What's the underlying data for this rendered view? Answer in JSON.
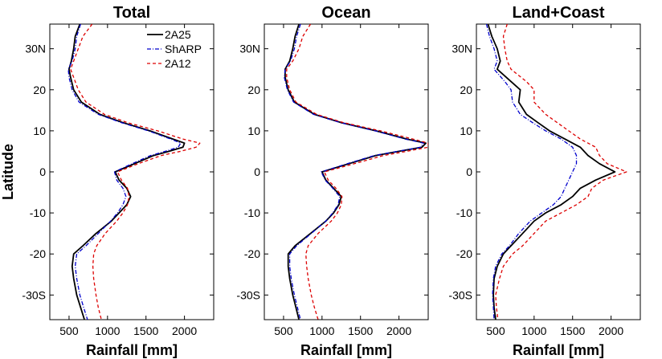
{
  "chart_data": [
    {
      "type": "line",
      "title": "Total",
      "xlabel": "Rainfall [mm]",
      "ylabel": "Latitude",
      "xlim": [
        250,
        2380
      ],
      "ylim": [
        -36,
        36
      ],
      "xticks": [
        500,
        1000,
        1500,
        2000
      ],
      "yticks": [
        {
          "value": 30,
          "label": "30N"
        },
        {
          "value": 20,
          "label": "20"
        },
        {
          "value": 10,
          "label": "10"
        },
        {
          "value": 0,
          "label": "0"
        },
        {
          "value": -10,
          "label": "-10"
        },
        {
          "value": -20,
          "label": "-20"
        },
        {
          "value": -30,
          "label": "-30S"
        }
      ],
      "legend": "top-right",
      "y": [
        36,
        33,
        30,
        27,
        25,
        23,
        20,
        17,
        14,
        12,
        10,
        8,
        7,
        6,
        5,
        4,
        2,
        0,
        -2,
        -4,
        -6,
        -8,
        -10,
        -12,
        -15,
        -18,
        -20,
        -23,
        -26,
        -30,
        -33,
        -36
      ],
      "series": [
        {
          "name": "2A25",
          "color": "#000000",
          "dash": "solid",
          "values": [
            640,
            580,
            560,
            530,
            500,
            520,
            560,
            660,
            900,
            1200,
            1550,
            1850,
            2000,
            1980,
            1800,
            1600,
            1350,
            1100,
            1150,
            1250,
            1300,
            1250,
            1150,
            1050,
            850,
            680,
            560,
            540,
            560,
            600,
            650,
            700
          ]
        },
        {
          "name": "ShARP",
          "color": "#0000cc",
          "dash": "5,2,1,2",
          "values": [
            650,
            600,
            580,
            540,
            490,
            500,
            540,
            630,
            880,
            1180,
            1530,
            1820,
            1950,
            1920,
            1750,
            1560,
            1320,
            1090,
            1120,
            1200,
            1240,
            1200,
            1130,
            1040,
            880,
            720,
            600,
            580,
            600,
            640,
            690,
            740
          ]
        },
        {
          "name": "2A12",
          "color": "#dd0000",
          "dash": "4,3",
          "values": [
            800,
            680,
            620,
            560,
            520,
            560,
            620,
            720,
            960,
            1260,
            1650,
            1980,
            2200,
            2150,
            1950,
            1700,
            1400,
            1130,
            1180,
            1260,
            1280,
            1260,
            1200,
            1120,
            970,
            860,
            820,
            810,
            820,
            850,
            880,
            920
          ]
        }
      ]
    },
    {
      "type": "line",
      "title": "Ocean",
      "xlabel": "Rainfall [mm]",
      "ylabel": "",
      "xlim": [
        250,
        2380
      ],
      "ylim": [
        -36,
        36
      ],
      "xticks": [
        500,
        1000,
        1500,
        2000
      ],
      "yticks": [
        {
          "value": 30,
          "label": "30N"
        },
        {
          "value": 20,
          "label": "20"
        },
        {
          "value": 10,
          "label": "10"
        },
        {
          "value": 0,
          "label": "0"
        },
        {
          "value": -10,
          "label": "-10"
        },
        {
          "value": -20,
          "label": "-20"
        },
        {
          "value": -30,
          "label": "-30S"
        }
      ],
      "y": [
        36,
        33,
        30,
        27,
        25,
        23,
        20,
        17,
        14,
        12,
        10,
        8,
        7,
        6,
        5,
        4,
        2,
        0,
        -2,
        -4,
        -6,
        -8,
        -10,
        -12,
        -15,
        -18,
        -20,
        -23,
        -26,
        -30,
        -33,
        -36
      ],
      "series": [
        {
          "name": "2A25",
          "color": "#000000",
          "dash": "solid",
          "values": [
            700,
            650,
            620,
            580,
            520,
            520,
            560,
            640,
            900,
            1250,
            1700,
            2100,
            2350,
            2300,
            2000,
            1700,
            1350,
            1000,
            1050,
            1150,
            1250,
            1220,
            1150,
            1050,
            850,
            650,
            560,
            560,
            580,
            620,
            660,
            700
          ]
        },
        {
          "name": "ShARP",
          "color": "#0000cc",
          "dash": "5,2,1,2",
          "values": [
            720,
            670,
            640,
            590,
            520,
            510,
            550,
            630,
            890,
            1240,
            1690,
            2080,
            2320,
            2280,
            1980,
            1680,
            1330,
            990,
            1040,
            1140,
            1230,
            1210,
            1140,
            1050,
            860,
            670,
            580,
            580,
            600,
            640,
            680,
            720
          ]
        },
        {
          "name": "2A12",
          "color": "#dd0000",
          "dash": "4,3",
          "values": [
            850,
            750,
            700,
            620,
            540,
            540,
            580,
            660,
            930,
            1280,
            1760,
            2180,
            2380,
            2380,
            2100,
            1800,
            1420,
            1030,
            1080,
            1180,
            1260,
            1250,
            1200,
            1120,
            950,
            820,
            790,
            800,
            820,
            860,
            900,
            950
          ]
        }
      ]
    },
    {
      "type": "line",
      "title": "Land+Coast",
      "xlabel": "Rainfall [mm]",
      "ylabel": "",
      "xlim": [
        250,
        2380
      ],
      "ylim": [
        -36,
        36
      ],
      "xticks": [
        500,
        1000,
        1500,
        2000
      ],
      "yticks": [
        {
          "value": 30,
          "label": "30N"
        },
        {
          "value": 20,
          "label": "20"
        },
        {
          "value": 10,
          "label": "10"
        },
        {
          "value": 0,
          "label": "0"
        },
        {
          "value": -10,
          "label": "-10"
        },
        {
          "value": -20,
          "label": "-20"
        },
        {
          "value": -30,
          "label": "-30S"
        }
      ],
      "y": [
        36,
        33,
        30,
        27,
        25,
        22,
        20,
        17,
        14,
        12,
        10,
        8,
        6,
        4,
        2,
        0,
        -2,
        -4,
        -6,
        -8,
        -10,
        -12,
        -15,
        -18,
        -20,
        -23,
        -26,
        -30,
        -33,
        -36
      ],
      "series": [
        {
          "name": "2A25",
          "color": "#000000",
          "dash": "solid",
          "values": [
            400,
            450,
            520,
            560,
            520,
            700,
            820,
            800,
            900,
            1050,
            1200,
            1400,
            1600,
            1700,
            1850,
            2050,
            1800,
            1600,
            1500,
            1350,
            1150,
            1000,
            850,
            700,
            600,
            520,
            480,
            470,
            480,
            500
          ]
        },
        {
          "name": "ShARP",
          "color": "#0000cc",
          "dash": "5,2,1,2",
          "values": [
            380,
            420,
            480,
            520,
            480,
            620,
            700,
            720,
            820,
            980,
            1150,
            1350,
            1500,
            1550,
            1550,
            1500,
            1450,
            1400,
            1350,
            1250,
            1100,
            950,
            800,
            680,
            580,
            500,
            470,
            460,
            470,
            480
          ]
        },
        {
          "name": "2A12",
          "color": "#dd0000",
          "dash": "4,3",
          "values": [
            650,
            600,
            620,
            650,
            700,
            900,
            1000,
            1000,
            1150,
            1300,
            1450,
            1600,
            1800,
            1850,
            1950,
            2200,
            1900,
            1750,
            1700,
            1550,
            1350,
            1150,
            1000,
            850,
            720,
            600,
            550,
            500,
            510,
            530
          ]
        }
      ]
    }
  ]
}
